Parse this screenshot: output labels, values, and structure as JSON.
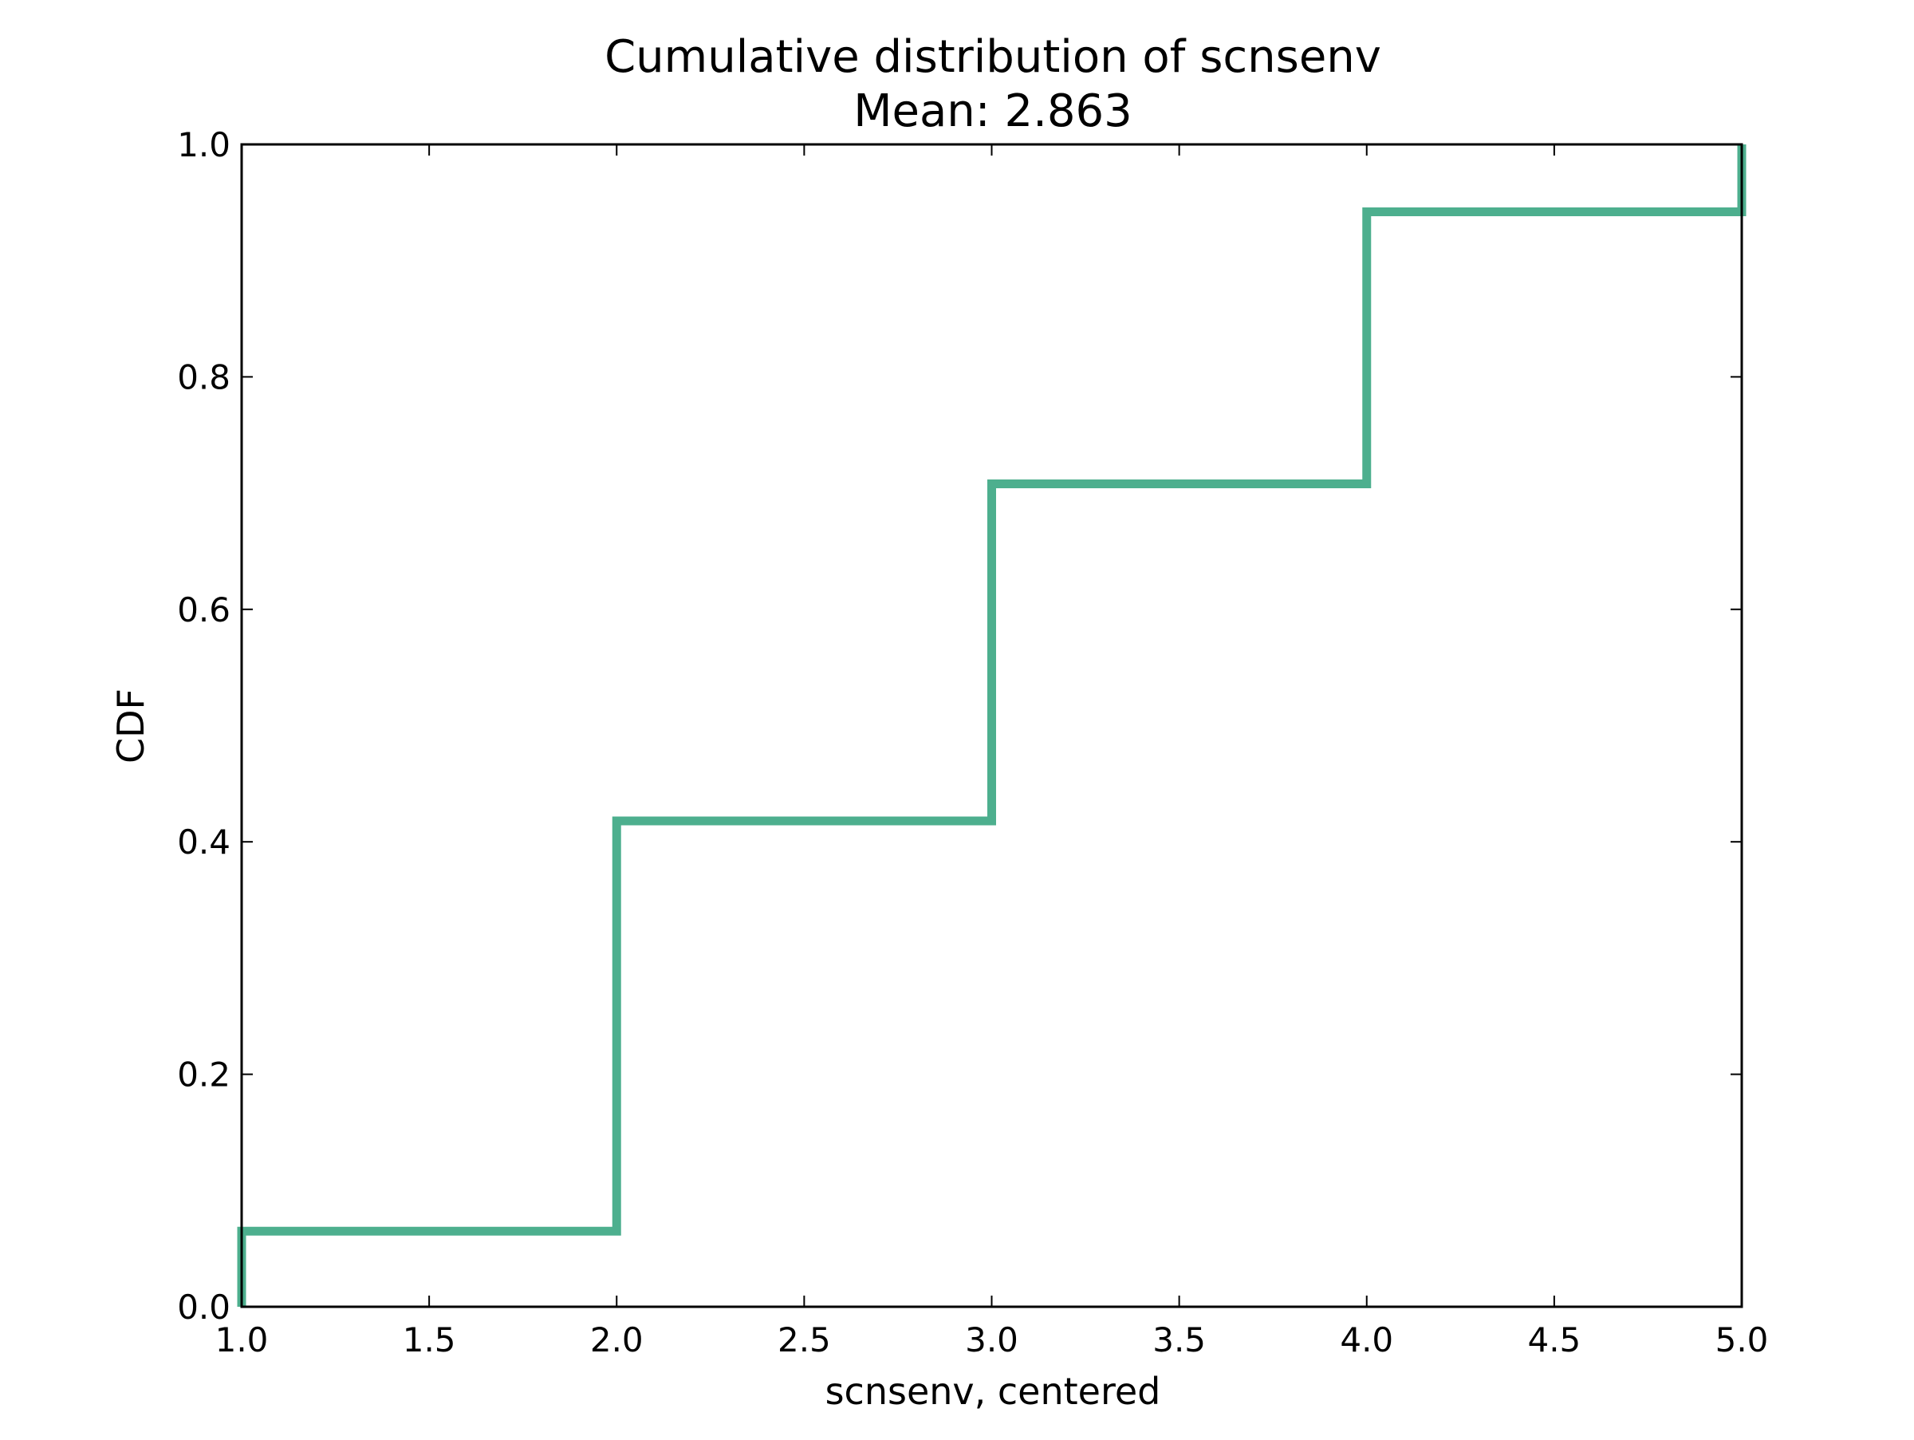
{
  "chart_data": {
    "type": "line",
    "step": "post",
    "title": "Cumulative distribution of scnsenv",
    "subtitle": "Mean: 2.863",
    "xlabel": "scnsenv, centered",
    "ylabel": "CDF",
    "xlim": [
      1.0,
      5.0
    ],
    "ylim": [
      0.0,
      1.0
    ],
    "x_ticks": [
      "1.0",
      "1.5",
      "2.0",
      "2.5",
      "3.0",
      "3.5",
      "4.0",
      "4.5",
      "5.0"
    ],
    "y_ticks": [
      "0.0",
      "0.2",
      "0.4",
      "0.6",
      "0.8",
      "1.0"
    ],
    "grid": false,
    "legend": "none",
    "series": [
      {
        "color": "#4daf8e",
        "x": [
          1.0,
          2.0,
          3.0,
          4.0,
          5.0
        ],
        "y": [
          0.065,
          0.418,
          0.708,
          0.942,
          1.0
        ]
      }
    ]
  }
}
